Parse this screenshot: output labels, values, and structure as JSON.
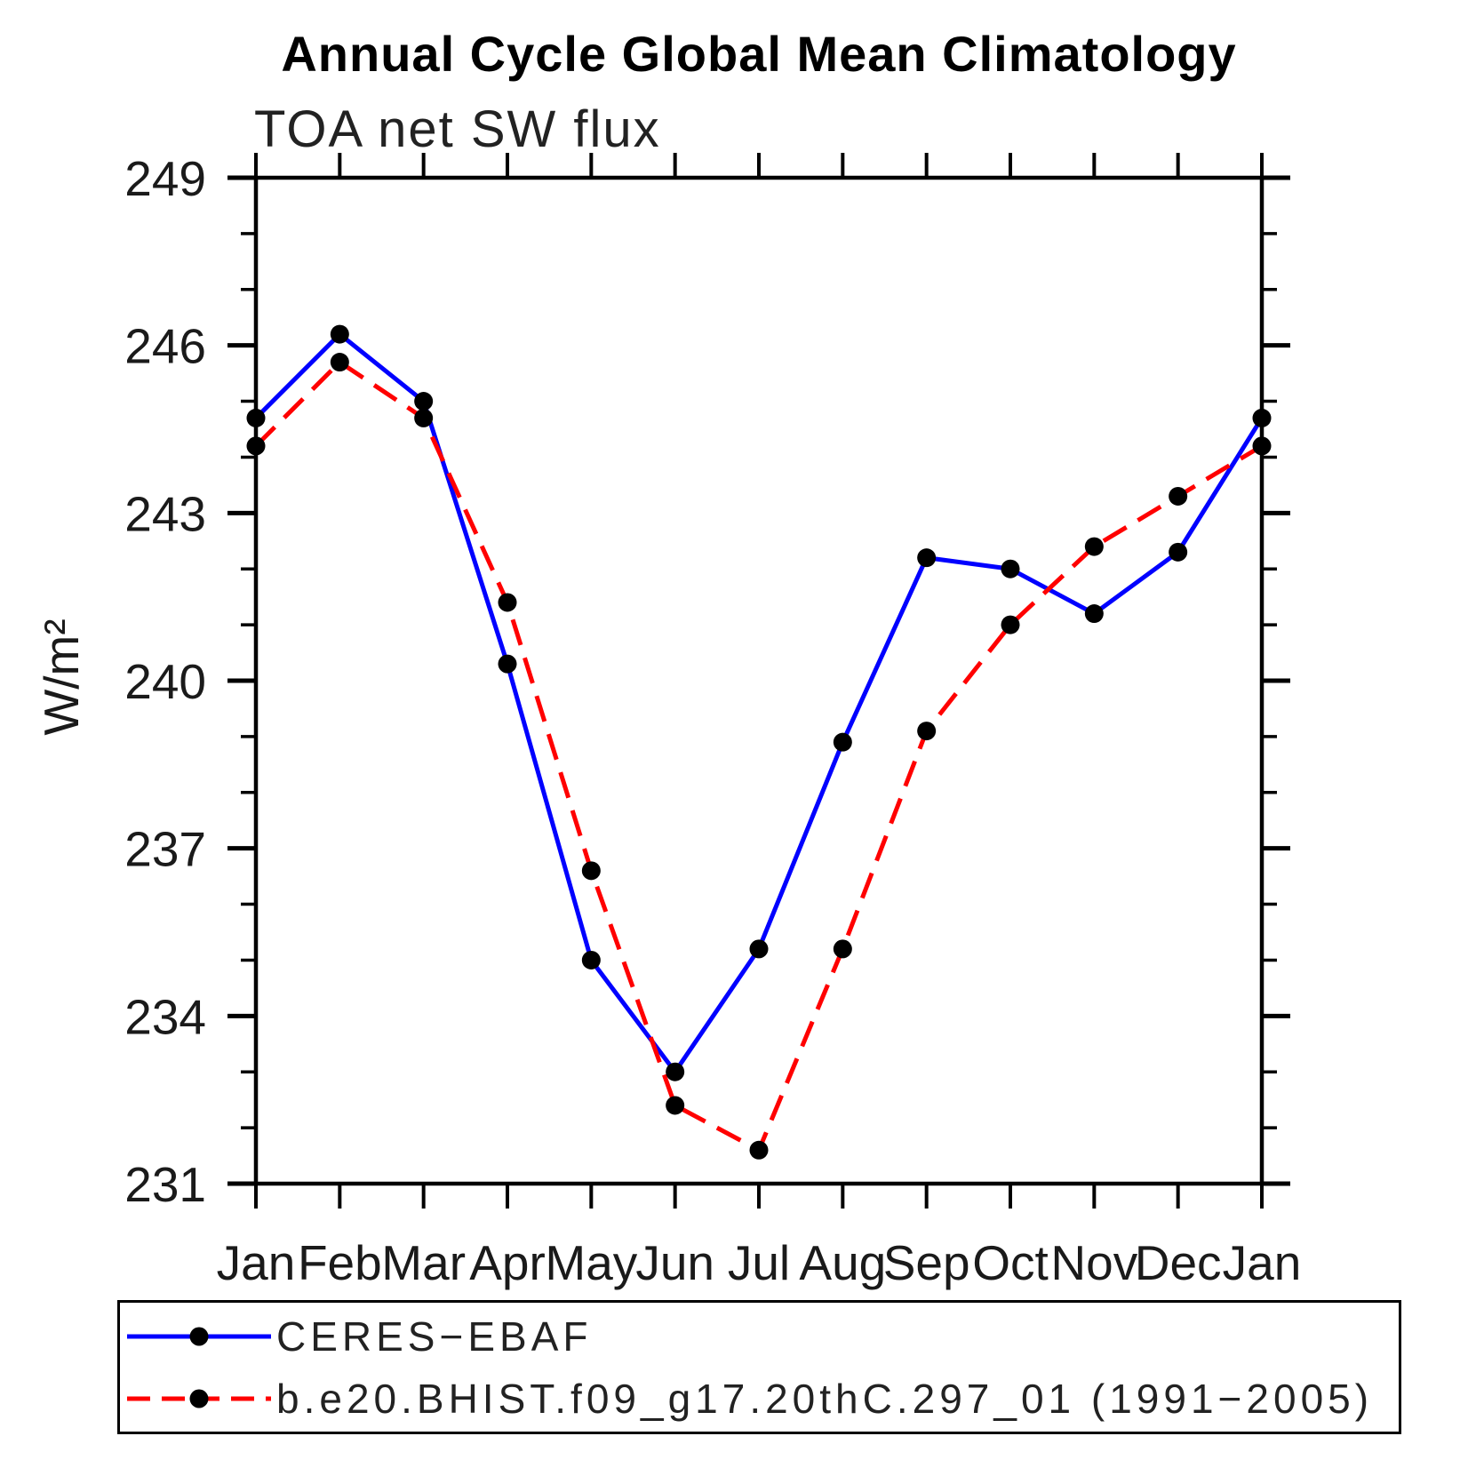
{
  "chart_data": {
    "type": "line",
    "title": "Annual Cycle Global Mean Climatology",
    "subtitle": "TOA net SW flux",
    "ylabel": "W/m²",
    "xlabel": "",
    "categories": [
      "Jan",
      "Feb",
      "Mar",
      "Apr",
      "May",
      "Jun",
      "Jul",
      "Aug",
      "Sep",
      "Oct",
      "Nov",
      "Dec",
      "Jan"
    ],
    "ylim": [
      231,
      249
    ],
    "ytick_major_interval": 3,
    "ytick_minor_interval": 1,
    "ytick_major_labels": [
      "231",
      "234",
      "237",
      "240",
      "243",
      "246",
      "249"
    ],
    "grid": false,
    "legend_position": "bottom-left-box",
    "axis_color": "#000000",
    "marker_color": "#000000",
    "series": [
      {
        "name": "CERES−EBAF",
        "color": "#0000ff",
        "line_style": "solid",
        "marker": "filled-circle",
        "values": [
          244.7,
          246.2,
          245.0,
          240.3,
          235.0,
          233.0,
          235.2,
          238.9,
          242.2,
          242.0,
          241.2,
          242.3,
          244.7
        ]
      },
      {
        "name": "b.e20.BHIST.f09_g17.20thC.297_01 (1991−2005)",
        "color": "#ff0000",
        "line_style": "dashed",
        "marker": "filled-circle",
        "values": [
          244.2,
          245.7,
          244.7,
          241.4,
          236.6,
          232.4,
          231.6,
          235.2,
          239.1,
          241.0,
          242.4,
          243.3,
          244.2
        ]
      }
    ]
  }
}
